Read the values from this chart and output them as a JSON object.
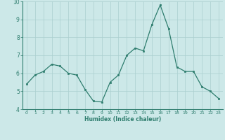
{
  "x": [
    0,
    1,
    2,
    3,
    4,
    5,
    6,
    7,
    8,
    9,
    10,
    11,
    12,
    13,
    14,
    15,
    16,
    17,
    18,
    19,
    20,
    21,
    22,
    23
  ],
  "y": [
    5.4,
    5.9,
    6.1,
    6.5,
    6.4,
    6.0,
    5.9,
    5.1,
    4.45,
    4.4,
    5.5,
    5.9,
    7.0,
    7.4,
    7.25,
    8.7,
    9.8,
    8.5,
    6.35,
    6.1,
    6.1,
    5.25,
    5.0,
    4.6
  ],
  "xlabel": "Humidex (Indice chaleur)",
  "xlim": [
    -0.5,
    23.5
  ],
  "ylim": [
    4,
    10
  ],
  "yticks": [
    4,
    5,
    6,
    7,
    8,
    9,
    10
  ],
  "xticks": [
    0,
    1,
    2,
    3,
    4,
    5,
    6,
    7,
    8,
    9,
    10,
    11,
    12,
    13,
    14,
    15,
    16,
    17,
    18,
    19,
    20,
    21,
    22,
    23
  ],
  "line_color": "#2e7d6e",
  "marker_color": "#2e7d6e",
  "bg_color": "#cce8e8",
  "grid_color": "#aacfcf",
  "axis_color": "#2e7d6e",
  "font_color": "#2e7d6e",
  "bottom_bar_color": "#3a8a7a"
}
